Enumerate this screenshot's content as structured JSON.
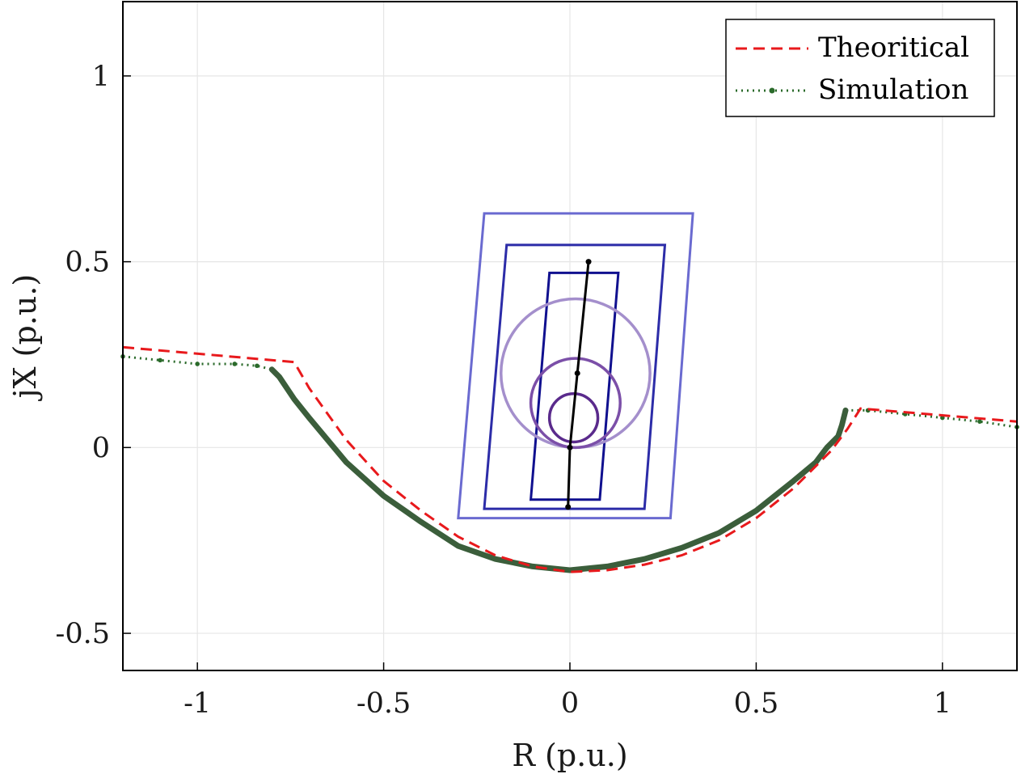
{
  "chart_data": {
    "type": "line",
    "title": "",
    "xlabel": "R (p.u.)",
    "ylabel": "jX (p.u.)",
    "xlim": [
      -1.2,
      1.2
    ],
    "ylim": [
      -0.6,
      1.2
    ],
    "xticks": [
      -1,
      -0.5,
      0,
      0.5,
      1
    ],
    "xtick_labels": [
      "-1",
      "-0.5",
      "0",
      "0.5",
      "1"
    ],
    "yticks": [
      -0.5,
      0,
      0.5,
      1
    ],
    "ytick_labels": [
      "-0.5",
      "0",
      "0.5",
      "1"
    ],
    "grid": true,
    "legend_position": "top-right",
    "colors": {
      "theoretical": "#e8191c",
      "simulation": "#2a6a2a",
      "simulation_thick": "#3b5e3b",
      "zone_outer": "#6a6ad0",
      "zone_middle": "#2c2ca8",
      "zone_inner": "#10108f",
      "mho_large": "#a48fcc",
      "mho_medium": "#7b4fa8",
      "mho_small": "#5a2a8c",
      "line_impedance": "#000000"
    },
    "legend": [
      {
        "label": "Theoritical",
        "style": "dashed",
        "color": "#e8191c"
      },
      {
        "label": "Simulation",
        "style": "dotted",
        "color": "#2a6a2a"
      }
    ],
    "series": [
      {
        "name": "Theoritical",
        "x": [
          -1.2,
          -0.74,
          -0.7,
          -0.6,
          -0.5,
          -0.4,
          -0.3,
          -0.2,
          -0.1,
          0,
          0.1,
          0.2,
          0.3,
          0.4,
          0.5,
          0.6,
          0.7,
          0.745,
          0.78,
          1.2
        ],
        "y": [
          0.27,
          0.23,
          0.16,
          0.02,
          -0.09,
          -0.17,
          -0.24,
          -0.29,
          -0.32,
          -0.335,
          -0.33,
          -0.315,
          -0.29,
          -0.25,
          -0.19,
          -0.11,
          -0.01,
          0.05,
          0.105,
          0.07
        ]
      },
      {
        "name": "Simulation",
        "x": [
          -1.2,
          -1.1,
          -1.0,
          -0.9,
          -0.84,
          -0.8,
          -0.78,
          -0.74,
          -0.7,
          -0.6,
          -0.5,
          -0.4,
          -0.3,
          -0.2,
          -0.1,
          0,
          0.1,
          0.2,
          0.3,
          0.4,
          0.5,
          0.6,
          0.66,
          0.69,
          0.72,
          0.73,
          0.74,
          0.8,
          0.9,
          1.0,
          1.1,
          1.2
        ],
        "y": [
          0.245,
          0.235,
          0.225,
          0.225,
          0.22,
          0.21,
          0.19,
          0.13,
          0.08,
          -0.04,
          -0.13,
          -0.2,
          -0.265,
          -0.3,
          -0.32,
          -0.33,
          -0.32,
          -0.3,
          -0.27,
          -0.23,
          -0.17,
          -0.09,
          -0.04,
          0.0,
          0.03,
          0.06,
          0.1,
          0.1,
          0.09,
          0.08,
          0.07,
          0.055
        ]
      }
    ],
    "zones": [
      {
        "name": "zone-outer",
        "corners": [
          [
            -0.3,
            -0.19
          ],
          [
            0.27,
            -0.19
          ],
          [
            0.33,
            0.63
          ],
          [
            -0.23,
            0.63
          ]
        ]
      },
      {
        "name": "zone-middle",
        "corners": [
          [
            -0.23,
            -0.165
          ],
          [
            0.2,
            -0.165
          ],
          [
            0.255,
            0.545
          ],
          [
            -0.17,
            0.545
          ]
        ]
      },
      {
        "name": "zone-inner",
        "corners": [
          [
            -0.105,
            -0.14
          ],
          [
            0.08,
            -0.14
          ],
          [
            0.13,
            0.47
          ],
          [
            -0.055,
            0.47
          ]
        ]
      }
    ],
    "mho_circles": [
      {
        "name": "mho-large",
        "center": [
          0.015,
          0.2
        ],
        "radius": 0.2
      },
      {
        "name": "mho-medium",
        "center": [
          0.015,
          0.12
        ],
        "radius": 0.12
      },
      {
        "name": "mho-small",
        "center": [
          0.01,
          0.08
        ],
        "radius": 0.065
      }
    ],
    "line_impedance": {
      "x": [
        -0.005,
        0,
        0.02,
        0.05
      ],
      "y": [
        -0.16,
        0,
        0.2,
        0.5
      ]
    }
  }
}
